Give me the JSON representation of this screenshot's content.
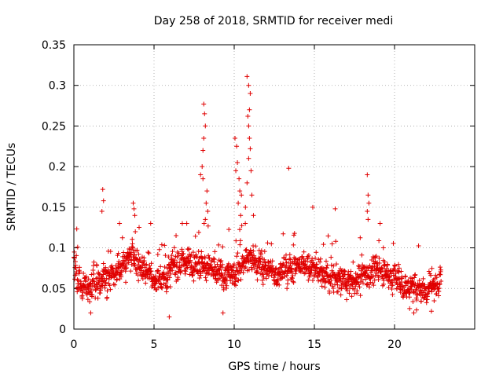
{
  "chart_data": {
    "type": "scatter",
    "title": "Day 258 of 2018, SRMTID for receiver medi",
    "xlabel": "GPS time / hours",
    "ylabel": "SRMTID / TECUs",
    "xlim": [
      0,
      25
    ],
    "ylim": [
      0,
      0.35
    ],
    "xticks": [
      0,
      5,
      10,
      15,
      20
    ],
    "xtick_labels": [
      "0",
      "5",
      "10",
      "15",
      "20"
    ],
    "yticks": [
      0,
      0.05,
      0.1,
      0.15,
      0.2,
      0.25,
      0.3,
      0.35
    ],
    "ytick_labels": [
      "0",
      "0.05",
      "0.1",
      "0.15",
      "0.2",
      "0.25",
      "0.3",
      "0.35"
    ],
    "grid": true,
    "marker": "+",
    "series_color": "#e00000",
    "baseline_profile": [
      [
        0.0,
        0.085
      ],
      [
        0.3,
        0.055
      ],
      [
        0.8,
        0.05
      ],
      [
        1.2,
        0.055
      ],
      [
        1.6,
        0.06
      ],
      [
        2.0,
        0.065
      ],
      [
        2.5,
        0.07
      ],
      [
        3.0,
        0.08
      ],
      [
        3.5,
        0.085
      ],
      [
        4.0,
        0.08
      ],
      [
        4.5,
        0.07
      ],
      [
        5.0,
        0.06
      ],
      [
        5.5,
        0.06
      ],
      [
        6.0,
        0.075
      ],
      [
        6.5,
        0.08
      ],
      [
        7.0,
        0.085
      ],
      [
        7.5,
        0.08
      ],
      [
        8.0,
        0.08
      ],
      [
        8.5,
        0.075
      ],
      [
        9.0,
        0.065
      ],
      [
        9.5,
        0.065
      ],
      [
        10.0,
        0.07
      ],
      [
        10.5,
        0.08
      ],
      [
        11.0,
        0.085
      ],
      [
        11.5,
        0.08
      ],
      [
        12.0,
        0.075
      ],
      [
        12.5,
        0.07
      ],
      [
        13.0,
        0.07
      ],
      [
        13.5,
        0.075
      ],
      [
        14.0,
        0.08
      ],
      [
        14.5,
        0.08
      ],
      [
        15.0,
        0.075
      ],
      [
        15.5,
        0.07
      ],
      [
        16.0,
        0.065
      ],
      [
        16.5,
        0.06
      ],
      [
        17.0,
        0.06
      ],
      [
        17.5,
        0.06
      ],
      [
        18.0,
        0.065
      ],
      [
        18.5,
        0.07
      ],
      [
        19.0,
        0.075
      ],
      [
        19.5,
        0.07
      ],
      [
        20.0,
        0.065
      ],
      [
        20.5,
        0.055
      ],
      [
        21.0,
        0.05
      ],
      [
        21.5,
        0.05
      ],
      [
        22.0,
        0.05
      ],
      [
        22.5,
        0.055
      ],
      [
        22.9,
        0.06
      ]
    ],
    "spread": 0.025,
    "num_points": 1650,
    "spikes": [
      {
        "x": 8.1,
        "y": 0.277
      },
      {
        "x": 8.15,
        "y": 0.265
      },
      {
        "x": 8.2,
        "y": 0.25
      },
      {
        "x": 8.1,
        "y": 0.235
      },
      {
        "x": 8.05,
        "y": 0.22
      },
      {
        "x": 8.0,
        "y": 0.2
      },
      {
        "x": 8.05,
        "y": 0.185
      },
      {
        "x": 8.3,
        "y": 0.17
      },
      {
        "x": 8.25,
        "y": 0.155
      },
      {
        "x": 8.35,
        "y": 0.145
      },
      {
        "x": 8.2,
        "y": 0.135
      },
      {
        "x": 7.9,
        "y": 0.19
      },
      {
        "x": 10.05,
        "y": 0.235
      },
      {
        "x": 10.15,
        "y": 0.225
      },
      {
        "x": 10.2,
        "y": 0.205
      },
      {
        "x": 10.3,
        "y": 0.185
      },
      {
        "x": 10.35,
        "y": 0.17
      },
      {
        "x": 10.25,
        "y": 0.155
      },
      {
        "x": 10.4,
        "y": 0.14
      },
      {
        "x": 10.1,
        "y": 0.195
      },
      {
        "x": 10.45,
        "y": 0.165
      },
      {
        "x": 10.8,
        "y": 0.311
      },
      {
        "x": 10.9,
        "y": 0.3
      },
      {
        "x": 11.0,
        "y": 0.29
      },
      {
        "x": 10.95,
        "y": 0.27
      },
      {
        "x": 10.85,
        "y": 0.262
      },
      {
        "x": 10.9,
        "y": 0.25
      },
      {
        "x": 10.95,
        "y": 0.235
      },
      {
        "x": 11.0,
        "y": 0.222
      },
      {
        "x": 10.9,
        "y": 0.21
      },
      {
        "x": 11.05,
        "y": 0.195
      },
      {
        "x": 10.8,
        "y": 0.18
      },
      {
        "x": 11.1,
        "y": 0.165
      },
      {
        "x": 10.7,
        "y": 0.15
      },
      {
        "x": 11.2,
        "y": 0.14
      },
      {
        "x": 13.4,
        "y": 0.198
      },
      {
        "x": 1.8,
        "y": 0.172
      },
      {
        "x": 1.85,
        "y": 0.158
      },
      {
        "x": 1.75,
        "y": 0.145
      },
      {
        "x": 3.7,
        "y": 0.155
      },
      {
        "x": 3.75,
        "y": 0.148
      },
      {
        "x": 3.8,
        "y": 0.14
      },
      {
        "x": 14.9,
        "y": 0.15
      },
      {
        "x": 16.3,
        "y": 0.148
      },
      {
        "x": 18.3,
        "y": 0.19
      },
      {
        "x": 18.35,
        "y": 0.165
      },
      {
        "x": 18.4,
        "y": 0.155
      },
      {
        "x": 18.3,
        "y": 0.145
      },
      {
        "x": 18.35,
        "y": 0.135
      },
      {
        "x": 19.1,
        "y": 0.13
      },
      {
        "x": 5.95,
        "y": 0.015
      },
      {
        "x": 1.05,
        "y": 0.02
      },
      {
        "x": 9.3,
        "y": 0.02
      },
      {
        "x": 21.2,
        "y": 0.02
      },
      {
        "x": 22.3,
        "y": 0.022
      }
    ]
  }
}
